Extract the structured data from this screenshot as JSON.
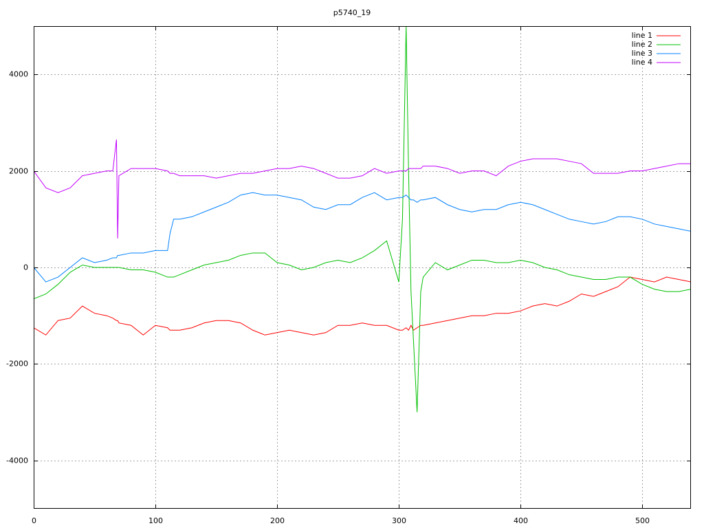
{
  "chart_data": {
    "type": "line",
    "title": "p5740_19",
    "x": [
      0,
      10,
      20,
      30,
      40,
      50,
      60,
      65,
      68,
      69,
      70,
      80,
      90,
      100,
      110,
      112,
      115,
      120,
      130,
      140,
      150,
      160,
      170,
      180,
      190,
      200,
      210,
      220,
      230,
      240,
      250,
      260,
      270,
      280,
      290,
      300,
      303,
      306,
      308,
      310,
      312,
      315,
      318,
      320,
      330,
      340,
      350,
      360,
      370,
      380,
      390,
      400,
      410,
      420,
      430,
      440,
      450,
      460,
      470,
      480,
      490,
      500,
      510,
      520,
      530,
      540
    ],
    "series": [
      {
        "name": "line 1",
        "color": "#ff0000",
        "values": [
          -1250,
          -1400,
          -1100,
          -1050,
          -800,
          -950,
          -1000,
          -1050,
          -1100,
          -1100,
          -1150,
          -1200,
          -1400,
          -1200,
          -1250,
          -1300,
          -1300,
          -1300,
          -1250,
          -1150,
          -1100,
          -1100,
          -1150,
          -1300,
          -1400,
          -1350,
          -1300,
          -1350,
          -1400,
          -1350,
          -1200,
          -1200,
          -1150,
          -1200,
          -1200,
          -1300,
          -1300,
          -1250,
          -1300,
          -1200,
          -1300,
          -1250,
          -1200,
          -1200,
          -1150,
          -1100,
          -1050,
          -1000,
          -1000,
          -950,
          -950,
          -900,
          -800,
          -750,
          -800,
          -700,
          -550,
          -600,
          -500,
          -400,
          -200,
          -250,
          -300,
          -200,
          -250,
          -300
        ]
      },
      {
        "name": "line 2",
        "color": "#00c000",
        "values": [
          -650,
          -550,
          -350,
          -100,
          50,
          0,
          0,
          0,
          0,
          0,
          0,
          -50,
          -50,
          -100,
          -200,
          -200,
          -200,
          -150,
          -50,
          50,
          100,
          150,
          250,
          300,
          300,
          100,
          50,
          -50,
          0,
          100,
          150,
          100,
          200,
          350,
          550,
          -300,
          1000,
          5000,
          2000,
          -500,
          -1500,
          -3000,
          -500,
          -200,
          100,
          -50,
          50,
          150,
          150,
          100,
          100,
          150,
          100,
          0,
          -50,
          -150,
          -200,
          -250,
          -250,
          -200,
          -200,
          -350,
          -450,
          -500,
          -500,
          -450
        ]
      },
      {
        "name": "line 3",
        "color": "#0080ff",
        "values": [
          0,
          -300,
          -200,
          0,
          200,
          100,
          150,
          200,
          200,
          250,
          250,
          300,
          300,
          350,
          350,
          700,
          1000,
          1000,
          1050,
          1150,
          1250,
          1350,
          1500,
          1550,
          1500,
          1500,
          1450,
          1400,
          1250,
          1200,
          1300,
          1300,
          1450,
          1550,
          1400,
          1450,
          1450,
          1500,
          1450,
          1400,
          1400,
          1350,
          1400,
          1400,
          1450,
          1300,
          1200,
          1150,
          1200,
          1200,
          1300,
          1350,
          1300,
          1200,
          1100,
          1000,
          950,
          900,
          950,
          1050,
          1050,
          1000,
          900,
          850,
          800,
          750
        ]
      },
      {
        "name": "line 4",
        "color": "#c000ff",
        "values": [
          2000,
          1650,
          1550,
          1650,
          1900,
          1950,
          2000,
          2000,
          2650,
          600,
          1900,
          2050,
          2050,
          2050,
          2000,
          1950,
          1950,
          1900,
          1900,
          1900,
          1850,
          1900,
          1950,
          1950,
          2000,
          2050,
          2050,
          2100,
          2050,
          1950,
          1850,
          1850,
          1900,
          2050,
          1950,
          2000,
          2000,
          2000,
          2050,
          2050,
          2050,
          2050,
          2050,
          2100,
          2100,
          2050,
          1950,
          2000,
          2000,
          1900,
          2100,
          2200,
          2250,
          2250,
          2250,
          2200,
          2150,
          1950,
          1950,
          1950,
          2000,
          2000,
          2050,
          2100,
          2150,
          2150
        ]
      }
    ],
    "xlim": [
      0,
      540
    ],
    "ylim": [
      -5000,
      5000
    ],
    "xticks": [
      0,
      100,
      200,
      300,
      400,
      500
    ],
    "yticks": [
      -4000,
      -2000,
      0,
      2000,
      4000
    ],
    "grid": true,
    "legend": "top-right"
  }
}
